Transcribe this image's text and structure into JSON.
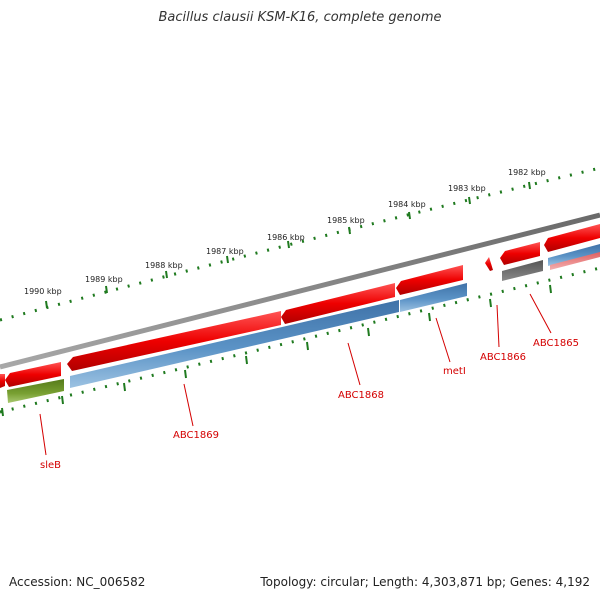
{
  "title": "Bacillus clausii KSM-K16, complete genome",
  "accession": "Accession: NC_006582",
  "topology": "Topology: circular; Length: 4,303,871 bp; Genes: 4,192",
  "scale_labels": [
    "1982 kbp",
    "1983 kbp",
    "1984 kbp",
    "1985 kbp",
    "1986 kbp",
    "1987 kbp",
    "1988 kbp",
    "1989 kbp",
    "1990 kbp"
  ],
  "gene_labels": [
    "ABC1865",
    "ABC1866",
    "metI",
    "ABC1868",
    "ABC1869",
    "sleB"
  ],
  "colors": {
    "forward_cds": "#e80000",
    "reverse_cds": "#4f86b8",
    "other_cds": "#6b8e23",
    "gray_feature": "#666666",
    "pink_feature": "#ee8888",
    "backbone": "#808080",
    "tick": "#1f7a1f",
    "label": "#d40000"
  }
}
